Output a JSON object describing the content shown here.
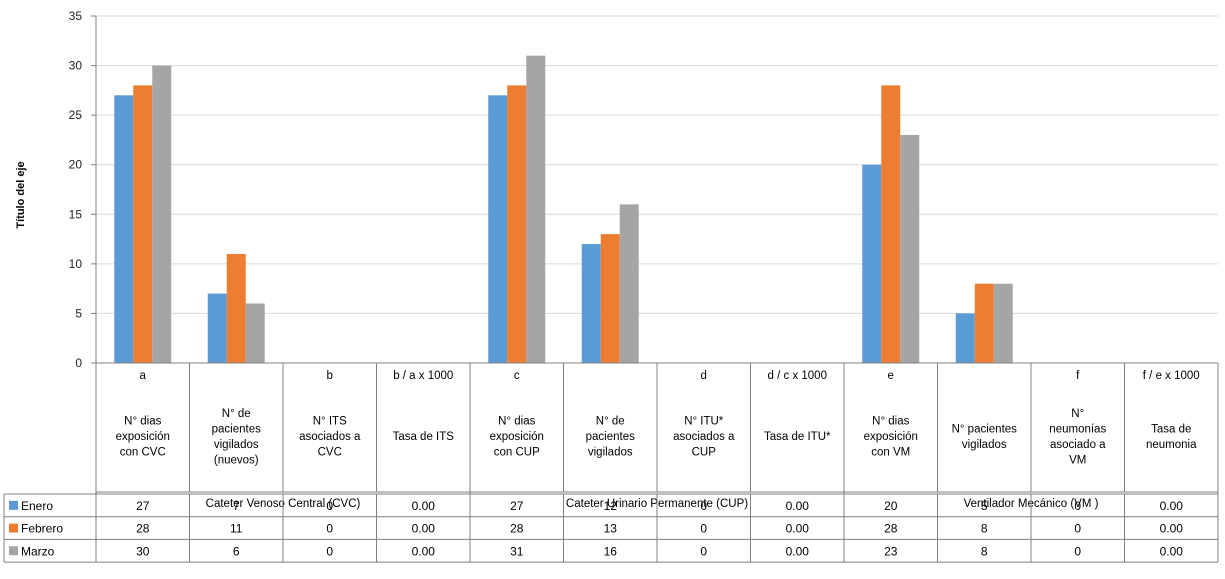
{
  "chart_data": {
    "type": "bar",
    "title": "",
    "xlabel": "",
    "ylabel": "Título del eje",
    "ylim": [
      0,
      35
    ],
    "yticks": [
      0,
      5,
      10,
      15,
      20,
      25,
      30,
      35
    ],
    "grid": true,
    "legend": "data-table-left",
    "categories": [
      {
        "code": "a",
        "label": [
          "N° dias",
          "exposición",
          "con CVC"
        ]
      },
      {
        "code": "",
        "label": [
          "N° de",
          "pacientes",
          "vigilados",
          "(nuevos)"
        ]
      },
      {
        "code": "b",
        "label": [
          "N° ITS",
          "asociados a",
          "CVC"
        ]
      },
      {
        "code": "b / a x 1000",
        "label": [
          "Tasa de ITS"
        ]
      },
      {
        "code": "c",
        "label": [
          "N° dias",
          "exposición",
          "con CUP"
        ]
      },
      {
        "code": "",
        "label": [
          "N° de",
          "pacientes",
          "vigilados"
        ]
      },
      {
        "code": "d",
        "label": [
          "N° ITU*",
          "asociados a",
          "CUP"
        ]
      },
      {
        "code": "d / c x 1000",
        "label": [
          "Tasa de ITU*"
        ]
      },
      {
        "code": "e",
        "label": [
          "N° dias",
          "exposición",
          "con VM"
        ]
      },
      {
        "code": "",
        "label": [
          "N° pacientes",
          "vigilados"
        ]
      },
      {
        "code": "f",
        "label": [
          "N°",
          "neumonías",
          "asociado a",
          "VM"
        ]
      },
      {
        "code": "f / e x 1000",
        "label": [
          "Tasa de",
          "neumonia"
        ]
      }
    ],
    "groups": [
      {
        "name": "Cateter Venoso  Central (CVC)",
        "span": 4
      },
      {
        "name": "Cateter Urinario Permanente (CUP)",
        "span": 4
      },
      {
        "name": "Ventilador Mecánico (VM )",
        "span": 4
      }
    ],
    "series": [
      {
        "name": "Enero",
        "color": "#5B9BD5",
        "values": [
          27,
          7,
          0,
          0,
          27,
          12,
          0,
          0,
          20,
          5,
          0,
          0
        ],
        "display": [
          "27",
          "7",
          "0",
          "0.00",
          "27",
          "12",
          "0",
          "0.00",
          "20",
          "5",
          "0",
          "0.00"
        ]
      },
      {
        "name": "Febrero",
        "color": "#ED7D31",
        "values": [
          28,
          11,
          0,
          0,
          28,
          13,
          0,
          0,
          28,
          8,
          0,
          0
        ],
        "display": [
          "28",
          "11",
          "0",
          "0.00",
          "28",
          "13",
          "0",
          "0.00",
          "28",
          "8",
          "0",
          "0.00"
        ]
      },
      {
        "name": "Marzo",
        "color": "#A5A5A5",
        "values": [
          30,
          6,
          0,
          0,
          31,
          16,
          0,
          0,
          23,
          8,
          0,
          0
        ],
        "display": [
          "30",
          "6",
          "0",
          "0.00",
          "31",
          "16",
          "0",
          "0.00",
          "23",
          "8",
          "0",
          "0.00"
        ]
      }
    ]
  }
}
